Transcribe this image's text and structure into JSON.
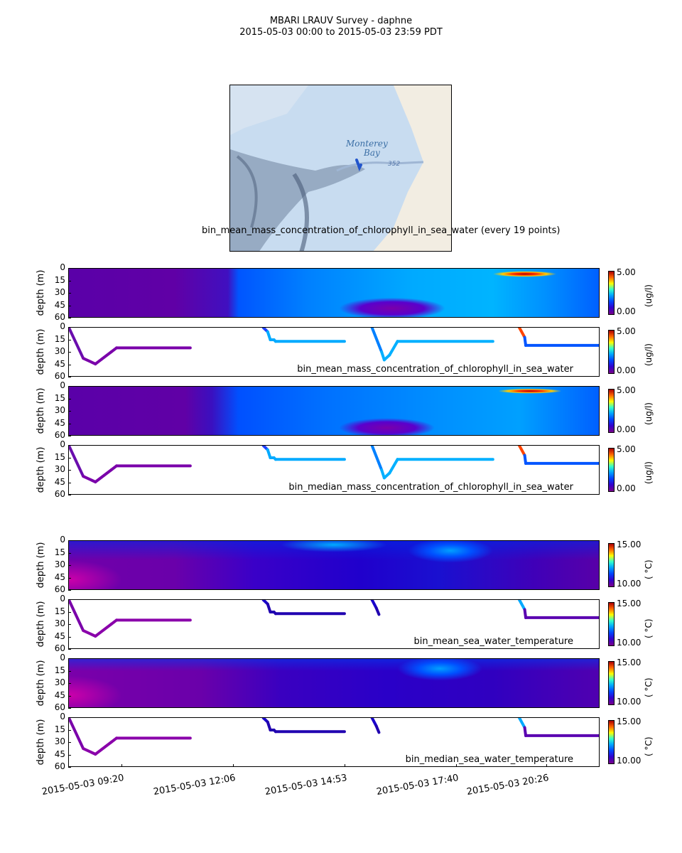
{
  "header": {
    "title": "MBARI LRAUV Survey - daphne",
    "subtitle": "2015-05-03 00:00  to  2015-05-03 23:59 PDT"
  },
  "map": {
    "label_1": "Monterey",
    "label_2": "Bay",
    "depth_label": "352",
    "caption": "bin_mean_mass_concentration_of_chlorophyll_in_sea_water (every 19 points)",
    "water_color": "#c8dcf0",
    "land_color": "#f2ede2",
    "track_color": "#2255cc"
  },
  "common": {
    "ylabel": "depth (m)",
    "yticks": [
      "0",
      "15",
      "30",
      "45",
      "60"
    ]
  },
  "chart_data": [
    {
      "type": "heatmap",
      "title": "",
      "ylabel": "depth (m)",
      "ylim": [
        60,
        0
      ],
      "colorbar": {
        "min": "0.00",
        "max": "5.00",
        "unit": "(ug/l)"
      }
    },
    {
      "type": "scatter",
      "title": "bin_mean_mass_concentration_of_chlorophyll_in_sea_water",
      "ylabel": "depth (m)",
      "ylim": [
        60,
        0
      ],
      "colorbar": {
        "min": "0.00",
        "max": "5.00",
        "unit": "(ug/l)"
      }
    },
    {
      "type": "heatmap",
      "title": "",
      "ylabel": "depth (m)",
      "ylim": [
        60,
        0
      ],
      "colorbar": {
        "min": "0.00",
        "max": "5.00",
        "unit": "(ug/l)"
      }
    },
    {
      "type": "scatter",
      "title": "bin_median_mass_concentration_of_chlorophyll_in_sea_water",
      "ylabel": "depth (m)",
      "ylim": [
        60,
        0
      ],
      "colorbar": {
        "min": "0.00",
        "max": "5.00",
        "unit": "(ug/l)"
      }
    },
    {
      "type": "heatmap",
      "title": "",
      "ylabel": "depth (m)",
      "ylim": [
        60,
        0
      ],
      "colorbar": {
        "min": "10.00",
        "max": "15.00",
        "unit": "( °C)"
      }
    },
    {
      "type": "scatter",
      "title": "bin_mean_sea_water_temperature",
      "ylabel": "depth (m)",
      "ylim": [
        60,
        0
      ],
      "colorbar": {
        "min": "10.00",
        "max": "15.00",
        "unit": "( °C)"
      }
    },
    {
      "type": "heatmap",
      "title": "",
      "ylabel": "depth (m)",
      "ylim": [
        60,
        0
      ],
      "colorbar": {
        "min": "10.00",
        "max": "15.00",
        "unit": "( °C)"
      }
    },
    {
      "type": "scatter",
      "title": "bin_median_sea_water_temperature",
      "ylabel": "depth (m)",
      "ylim": [
        60,
        0
      ],
      "colorbar": {
        "min": "10.00",
        "max": "15.00",
        "unit": "( °C)"
      }
    }
  ],
  "xaxis": {
    "ticks": [
      "2015-05-03 09:20",
      "2015-05-03 12:06",
      "2015-05-03 14:53",
      "2015-05-03 17:40",
      "2015-05-03 20:26"
    ]
  },
  "track": {
    "profiles_chl": [
      {
        "t": [
          0.0,
          0.027,
          0.05,
          0.08,
          0.09,
          0.229
        ],
        "d": [
          0,
          38,
          45,
          30,
          25,
          25
        ]
      },
      {
        "t": [
          0.367,
          0.375,
          0.38,
          0.387,
          0.39,
          0.52
        ],
        "d": [
          0,
          5,
          15,
          15,
          17,
          17
        ]
      },
      {
        "t": [
          0.572,
          0.59,
          0.595,
          0.605,
          0.62,
          0.8
        ],
        "d": [
          0,
          30,
          40,
          34,
          17,
          17
        ]
      },
      {
        "t": [
          0.85,
          0.86,
          0.862,
          1.0
        ],
        "d": [
          0,
          12,
          22,
          22
        ]
      }
    ],
    "profiles_temp": [
      {
        "t": [
          0.0,
          0.027,
          0.05,
          0.08,
          0.09,
          0.229
        ],
        "d": [
          0,
          38,
          45,
          30,
          25,
          25
        ]
      },
      {
        "t": [
          0.367,
          0.375,
          0.38,
          0.387,
          0.39,
          0.52
        ],
        "d": [
          0,
          5,
          15,
          15,
          17,
          17
        ]
      },
      {
        "t": [
          0.572,
          0.58,
          0.585
        ],
        "d": [
          0,
          10,
          18
        ]
      },
      {
        "t": [
          0.85,
          0.86,
          0.862,
          1.0
        ],
        "d": [
          0,
          12,
          22,
          22
        ]
      }
    ]
  }
}
